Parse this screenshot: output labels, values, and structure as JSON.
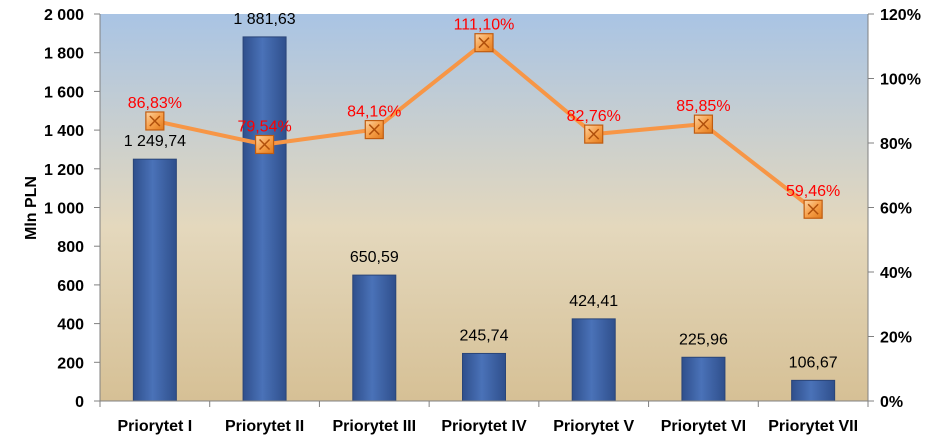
{
  "chart_data": {
    "type": "bar",
    "categories": [
      "Priorytet I",
      "Priorytet II",
      "Priorytet III",
      "Priorytet IV",
      "Priorytet V",
      "Priorytet VI",
      "Priorytet VII"
    ],
    "series": [
      {
        "type": "bar",
        "axis": "left",
        "values": [
          1249.74,
          1881.63,
          650.59,
          245.74,
          424.41,
          225.96,
          106.67
        ],
        "labels": [
          "1 249,74",
          "1 881,63",
          "650,59",
          "245,74",
          "424,41",
          "225,96",
          "106,67"
        ],
        "color": "#3f63a6"
      },
      {
        "type": "line",
        "axis": "right",
        "values": [
          86.83,
          79.54,
          84.16,
          111.1,
          82.76,
          85.85,
          59.46
        ],
        "labels": [
          "86,83%",
          "79,54%",
          "84,16%",
          "111,10%",
          "82,76%",
          "85,85%",
          "59,46%"
        ],
        "color": "#f79646",
        "marker_color": "#f7a04a",
        "label_color": "#ff0000"
      }
    ],
    "ylabel": "Mln PLN",
    "ylim": [
      0,
      2000
    ],
    "yticks": [
      "0",
      "200",
      "400",
      "600",
      "800",
      "1 000",
      "1 200",
      "1 400",
      "1 600",
      "1 800",
      "2 000"
    ],
    "y2lim": [
      0,
      120
    ],
    "y2ticks": [
      "0%",
      "20%",
      "40%",
      "60%",
      "80%",
      "100%",
      "120%"
    ],
    "grid": false,
    "legend": "none",
    "background_gradient": [
      "#a9c4e4",
      "#e4d8bd",
      "#d6c095"
    ]
  }
}
